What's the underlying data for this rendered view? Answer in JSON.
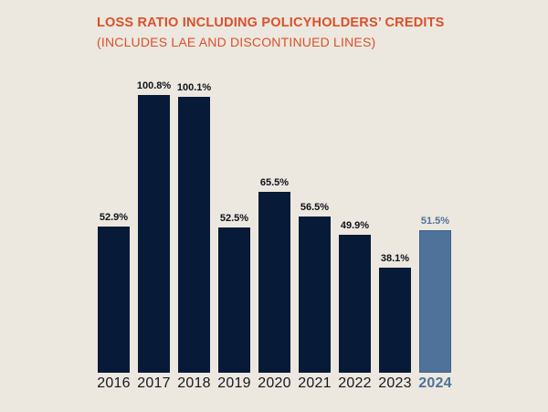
{
  "page": {
    "background_color": "#ECE8DF"
  },
  "header": {
    "title": "LOSS RATIO INCLUDING POLICYHOLDERS’ CREDITS",
    "subtitle": "(INCLUDES LAE AND DISCONTINUED LINES)",
    "title_color": "#D9502A"
  },
  "chart_data": {
    "type": "bar",
    "title": "LOSS RATIO INCLUDING POLICYHOLDERS’ CREDITS (INCLUDES LAE AND DISCONTINUED LINES)",
    "categories": [
      "2016",
      "2017",
      "2018",
      "2019",
      "2020",
      "2021",
      "2022",
      "2023",
      "2024"
    ],
    "values": [
      52.9,
      100.8,
      100.1,
      52.5,
      65.5,
      56.5,
      49.9,
      38.1,
      51.5
    ],
    "data_labels": [
      "52.9%",
      "100.8%",
      "100.1%",
      "52.5%",
      "65.5%",
      "56.5%",
      "49.9%",
      "38.1%",
      "51.5%"
    ],
    "xlabel": "",
    "ylabel": "",
    "ylim": [
      0,
      110
    ],
    "grid": false,
    "legend_position": "none",
    "axes_drawn": false,
    "highlighted_category": "2024",
    "bar_color": "#071A38",
    "highlight_bar_color": "#4E7299",
    "data_label_color": "#10131B",
    "highlight_label_color": "#4E7299"
  }
}
